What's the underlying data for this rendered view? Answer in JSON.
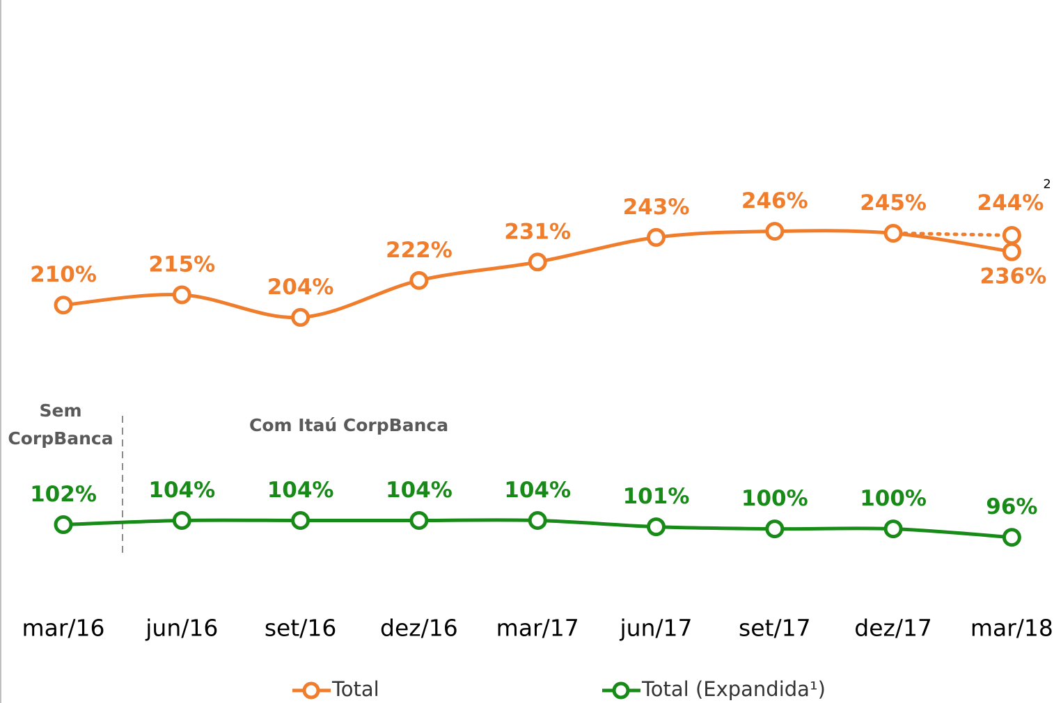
{
  "chart_data": {
    "type": "line",
    "categories": [
      "mar/16",
      "jun/16",
      "set/16",
      "dez/16",
      "mar/17",
      "jun/17",
      "set/17",
      "dez/17",
      "mar/18"
    ],
    "series": [
      {
        "name": "Total",
        "color": "#ef7d2c",
        "axis": "y",
        "values": [
          210,
          215,
          204,
          222,
          231,
          243,
          246,
          245,
          236
        ],
        "value_labels": [
          "210%",
          "215%",
          "204%",
          "222%",
          "231%",
          "243%",
          "246%",
          "245%",
          "236%"
        ],
        "alt_values": [
          null,
          null,
          null,
          null,
          null,
          null,
          null,
          null,
          244
        ],
        "alt_value_labels": [
          null,
          null,
          null,
          null,
          null,
          null,
          null,
          null,
          "244%"
        ],
        "alt_note": "2"
      },
      {
        "name": "Total (Expandida¹)",
        "color": "#178a17",
        "axis": "y2",
        "values": [
          102,
          104,
          104,
          104,
          104,
          101,
          100,
          100,
          96
        ],
        "value_labels": [
          "102%",
          "104%",
          "104%",
          "104%",
          "104%",
          "101%",
          "100%",
          "100%",
          "96%"
        ]
      }
    ],
    "ylim": [
      196,
      274
    ],
    "y2lim": [
      87,
      120
    ],
    "annotations": [
      "Sem",
      "CorpBanca",
      "Com Itaú CorpBanca"
    ]
  }
}
